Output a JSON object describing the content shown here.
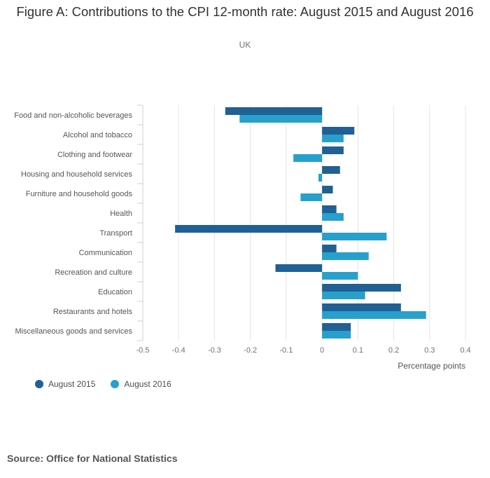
{
  "title": "Figure A: Contributions to the CPI 12-month rate: August 2015 and August 2016",
  "subtitle": "UK",
  "source": "Source: Office for National Statistics",
  "colors": {
    "series_2015": "#206095",
    "series_2016": "#27a0cc",
    "grid": "#e4e4e4",
    "axis_text": "#707071"
  },
  "chart_data": {
    "type": "bar",
    "orientation": "horizontal",
    "categories": [
      "Food and non-alcoholic beverages",
      "Alcohol and tobacco",
      "Clothing and footwear",
      "Housing and household services",
      "Furniture and household goods",
      "Health",
      "Transport",
      "Communication",
      "Recreation and culture",
      "Education",
      "Restaurants and hotels",
      "Miscellaneous goods and services"
    ],
    "series": [
      {
        "name": "August 2015",
        "values": [
          -0.27,
          0.09,
          0.06,
          0.05,
          0.03,
          0.04,
          -0.41,
          0.04,
          -0.13,
          0.22,
          0.22,
          0.08
        ]
      },
      {
        "name": "August 2016",
        "values": [
          -0.23,
          0.06,
          -0.08,
          -0.01,
          -0.06,
          0.06,
          0.18,
          0.13,
          0.1,
          0.12,
          0.29,
          0.08
        ]
      }
    ],
    "xlabel": "Percentage points",
    "xlim": [
      -0.5,
      0.4
    ],
    "xticks": [
      "-0.5",
      "-0.4",
      "-0.3",
      "-0.2",
      "-0.1",
      "0",
      "0.1",
      "0.2",
      "0.3",
      "0.4"
    ],
    "grid": true,
    "legend_position": "bottom-left"
  }
}
